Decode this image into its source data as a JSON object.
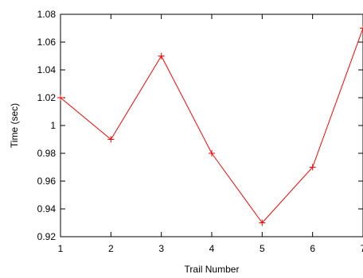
{
  "chart_data": {
    "type": "line",
    "title": "",
    "xlabel": "Trail Number",
    "ylabel": "Time (sec)",
    "xlim": [
      1,
      7
    ],
    "ylim": [
      0.92,
      1.08
    ],
    "x_ticks": [
      "1",
      "2",
      "3",
      "4",
      "5",
      "6",
      "7"
    ],
    "y_ticks": [
      "0.92",
      "0.94",
      "0.96",
      "0.98",
      "1",
      "1.02",
      "1.04",
      "1.06",
      "1.08"
    ],
    "grid": false,
    "legend": "none",
    "series": [
      {
        "color": "#ff0000",
        "marker": "plus",
        "x": [
          1,
          2,
          3,
          4,
          5,
          6,
          7
        ],
        "values": [
          1.02,
          0.99,
          1.05,
          0.98,
          0.93,
          0.97,
          1.07
        ]
      }
    ]
  }
}
